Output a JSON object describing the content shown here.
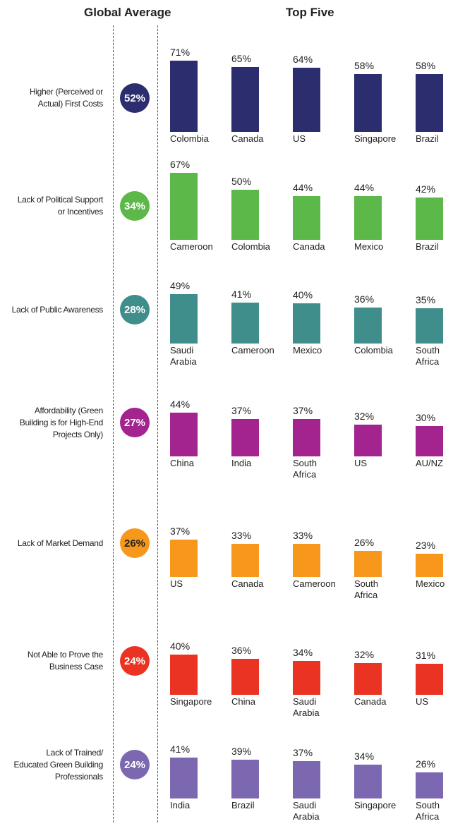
{
  "chart_data": {
    "type": "bar",
    "headers": [
      "Global Average",
      "Top Five"
    ],
    "groups": [
      {
        "label": "Higher (Perceived or Actual) First Costs",
        "average": 52,
        "average_label": "52%",
        "color": "#2b2d6e",
        "categories": [
          "Colombia",
          "Canada",
          "US",
          "Singapore",
          "Brazil"
        ],
        "values": [
          71,
          65,
          64,
          58,
          58
        ],
        "value_labels": [
          "71%",
          "65%",
          "64%",
          "58%",
          "58%"
        ]
      },
      {
        "label": "Lack of Political Support or Incentives",
        "average": 34,
        "average_label": "34%",
        "color": "#5cb848",
        "categories": [
          "Cameroon",
          "Colombia",
          "Canada",
          "Mexico",
          "Brazil"
        ],
        "values": [
          67,
          50,
          44,
          44,
          42
        ],
        "value_labels": [
          "67%",
          "50%",
          "44%",
          "44%",
          "42%"
        ]
      },
      {
        "label": "Lack of Public Awareness",
        "average": 28,
        "average_label": "28%",
        "color": "#3f8e8c",
        "categories": [
          "Saudi Arabia",
          "Cameroon",
          "Mexico",
          "Colombia",
          "South Africa"
        ],
        "values": [
          49,
          41,
          40,
          36,
          35
        ],
        "value_labels": [
          "49%",
          "41%",
          "40%",
          "36%",
          "35%"
        ]
      },
      {
        "label": "Affordability (Green Building is for High-End Projects Only)",
        "average": 27,
        "average_label": "27%",
        "color": "#a3238f",
        "categories": [
          "China",
          "India",
          "South Africa",
          "US",
          "AU/NZ"
        ],
        "values": [
          44,
          37,
          37,
          32,
          30
        ],
        "value_labels": [
          "44%",
          "37%",
          "37%",
          "32%",
          "30%"
        ]
      },
      {
        "label": "Lack of Market Demand",
        "average": 26,
        "average_label": "26%",
        "color": "#f7981d",
        "categories": [
          "US",
          "Canada",
          "Cameroon",
          "South Africa",
          "Mexico"
        ],
        "values": [
          37,
          33,
          33,
          26,
          23
        ],
        "value_labels": [
          "37%",
          "33%",
          "33%",
          "26%",
          "23%"
        ]
      },
      {
        "label": "Not Able to Prove the Business Case",
        "average": 24,
        "average_label": "24%",
        "color": "#ea3323",
        "categories": [
          "Singapore",
          "China",
          "Saudi Arabia",
          "Canada",
          "US"
        ],
        "values": [
          40,
          36,
          34,
          32,
          31
        ],
        "value_labels": [
          "40%",
          "36%",
          "34%",
          "32%",
          "31%"
        ]
      },
      {
        "label": "Lack of Trained/ Educated Green Building Professionals",
        "average": 24,
        "average_label": "24%",
        "color": "#7b68b0",
        "categories": [
          "India",
          "Brazil",
          "Saudi Arabia",
          "Singapore",
          "South Africa"
        ],
        "values": [
          41,
          39,
          37,
          34,
          26
        ],
        "value_labels": [
          "41%",
          "39%",
          "37%",
          "34%",
          "26%"
        ]
      }
    ]
  }
}
